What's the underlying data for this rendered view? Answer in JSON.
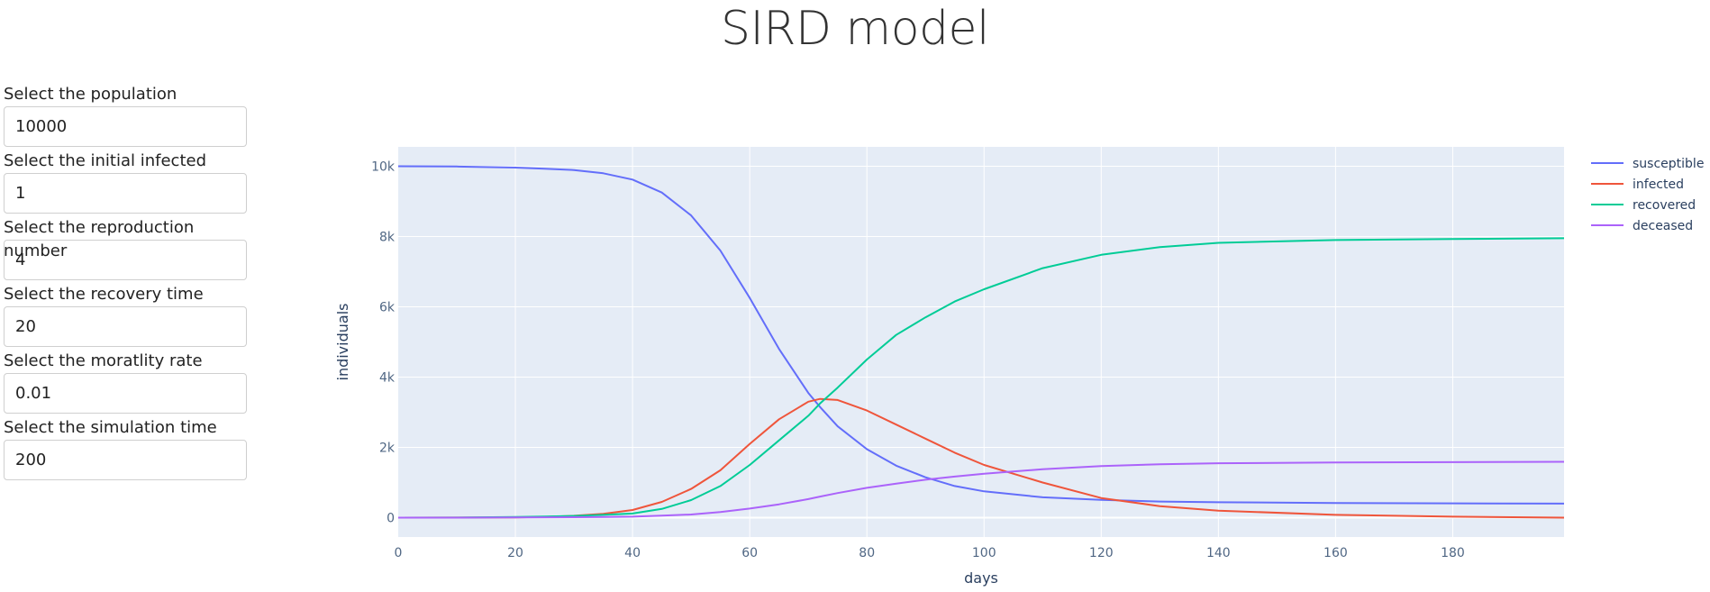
{
  "page_title": "SIRD model",
  "controls": [
    {
      "label": "Select the population",
      "value": "10000"
    },
    {
      "label": "Select the initial infected",
      "value": "1"
    },
    {
      "label": "Select the reproduction number",
      "value": "4"
    },
    {
      "label": "Select the recovery time",
      "value": "20"
    },
    {
      "label": "Select the moratlity rate",
      "value": "0.01"
    },
    {
      "label": "Select the simulation time",
      "value": "200"
    }
  ],
  "colors": {
    "susceptible": "#636efa",
    "infected": "#ef553b",
    "recovered": "#00cc96",
    "deceased": "#ab63fa",
    "plot_bg": "#e5ecf6"
  },
  "chart_data": {
    "type": "line",
    "title": "",
    "xlabel": "days",
    "ylabel": "individuals",
    "xlim": [
      0,
      199
    ],
    "ylim": [
      -550,
      10550
    ],
    "x_ticks": [
      0,
      20,
      40,
      60,
      80,
      100,
      120,
      140,
      160,
      180
    ],
    "x_tick_labels": [
      "0",
      "20",
      "40",
      "60",
      "80",
      "100",
      "120",
      "140",
      "160",
      "180"
    ],
    "y_ticks": [
      0,
      2000,
      4000,
      6000,
      8000,
      10000
    ],
    "y_tick_labels": [
      "0",
      "2k",
      "4k",
      "6k",
      "8k",
      "10k"
    ],
    "grid": true,
    "legend_position": "right",
    "x": [
      0,
      10,
      20,
      25,
      30,
      35,
      40,
      45,
      50,
      55,
      60,
      65,
      70,
      72,
      75,
      80,
      85,
      90,
      95,
      100,
      110,
      120,
      130,
      140,
      160,
      180,
      199
    ],
    "series": [
      {
        "name": "susceptible",
        "values": [
          10000,
          9990,
          9960,
          9930,
          9890,
          9800,
          9620,
          9250,
          8600,
          7600,
          6250,
          4800,
          3550,
          3150,
          2600,
          1950,
          1480,
          1150,
          900,
          750,
          580,
          510,
          460,
          440,
          420,
          410,
          400
        ]
      },
      {
        "name": "infected",
        "values": [
          1,
          3,
          10,
          25,
          55,
          110,
          220,
          450,
          820,
          1350,
          2100,
          2800,
          3300,
          3380,
          3350,
          3050,
          2650,
          2250,
          1850,
          1500,
          1000,
          560,
          330,
          200,
          80,
          30,
          0
        ]
      },
      {
        "name": "recovered",
        "values": [
          0,
          5,
          20,
          35,
          50,
          80,
          120,
          250,
          500,
          900,
          1500,
          2200,
          2900,
          3250,
          3700,
          4500,
          5200,
          5700,
          6150,
          6500,
          7100,
          7480,
          7700,
          7820,
          7900,
          7930,
          7950
        ]
      },
      {
        "name": "deceased",
        "values": [
          0,
          2,
          8,
          12,
          15,
          20,
          30,
          60,
          90,
          160,
          260,
          380,
          530,
          600,
          700,
          850,
          970,
          1080,
          1170,
          1250,
          1380,
          1470,
          1520,
          1550,
          1570,
          1580,
          1590
        ]
      }
    ]
  }
}
